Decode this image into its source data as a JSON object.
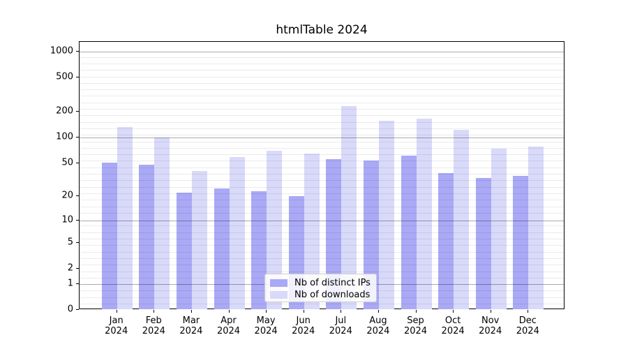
{
  "title": "htmlTable 2024",
  "chart_data": {
    "type": "bar",
    "title": "htmlTable 2024",
    "categories": [
      "Jan",
      "Feb",
      "Mar",
      "Apr",
      "May",
      "Jun",
      "Jul",
      "Aug",
      "Sep",
      "Oct",
      "Nov",
      "Dec"
    ],
    "category_year": "2024",
    "series": [
      {
        "name": "Nb of distinct IPs",
        "color": "#a9a9f6",
        "values": [
          51,
          48,
          22,
          25,
          23,
          20,
          56,
          54,
          61,
          38,
          33,
          35
        ]
      },
      {
        "name": "Nb of downloads",
        "color": "#d9d9fa",
        "values": [
          133,
          100,
          40,
          59,
          70,
          65,
          235,
          159,
          168,
          124,
          74,
          79
        ]
      }
    ],
    "y_ticks": [
      0,
      1,
      2,
      5,
      10,
      20,
      50,
      100,
      200,
      500,
      1000
    ],
    "y_scale": "log10(value+1)",
    "ylim": [
      0,
      1300
    ],
    "grid": true,
    "grid_major_at": [
      1,
      10,
      100,
      1000
    ],
    "legend_position": "lower center"
  },
  "legend": {
    "items": [
      {
        "label": "Nb of distinct IPs",
        "color": "#a9a9f6"
      },
      {
        "label": "Nb of downloads",
        "color": "#d9d9fa"
      }
    ]
  },
  "colors": {
    "bar_distinct_ips": "#a9a9f6",
    "bar_downloads": "#d9d9fa",
    "axis": "#000000",
    "legend_border": "#cccccc"
  }
}
